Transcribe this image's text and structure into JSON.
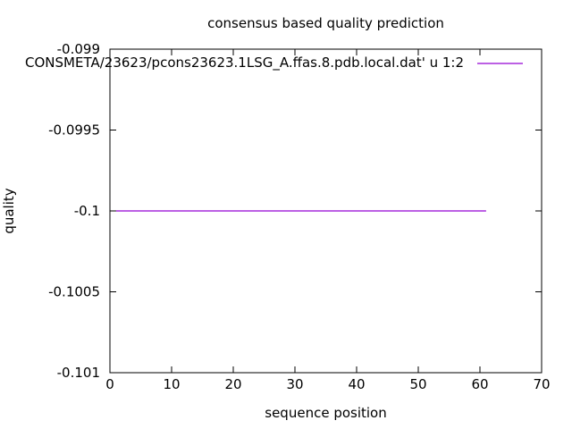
{
  "chart_data": {
    "type": "line",
    "title": "consensus based quality prediction",
    "xlabel": "sequence position",
    "ylabel": "quality",
    "xlim": [
      0,
      70
    ],
    "ylim": [
      -0.101,
      -0.099
    ],
    "grid": false,
    "legend_position": "top-right-inside",
    "x_ticks": [
      {
        "value": 0,
        "label": "0"
      },
      {
        "value": 10,
        "label": "10"
      },
      {
        "value": 20,
        "label": "20"
      },
      {
        "value": 30,
        "label": "30"
      },
      {
        "value": 40,
        "label": "40"
      },
      {
        "value": 50,
        "label": "50"
      },
      {
        "value": 60,
        "label": "60"
      },
      {
        "value": 70,
        "label": "70"
      }
    ],
    "y_ticks": [
      {
        "value": -0.099,
        "label": "-0.099"
      },
      {
        "value": -0.0995,
        "label": "-0.0995"
      },
      {
        "value": -0.1,
        "label": "-0.1"
      },
      {
        "value": -0.1005,
        "label": "-0.1005"
      },
      {
        "value": -0.101,
        "label": "-0.101"
      }
    ],
    "series": [
      {
        "name": "CONSMETA/23623/pcons23623.1LSG_A.ffas.8.pdb.local.dat' u 1:2",
        "color": "#9400d3",
        "points": [
          [
            1,
            -0.1
          ],
          [
            61,
            -0.1
          ]
        ]
      }
    ]
  },
  "colors": {
    "background": "#ffffff",
    "axis": "#000000",
    "text": "#000000"
  }
}
